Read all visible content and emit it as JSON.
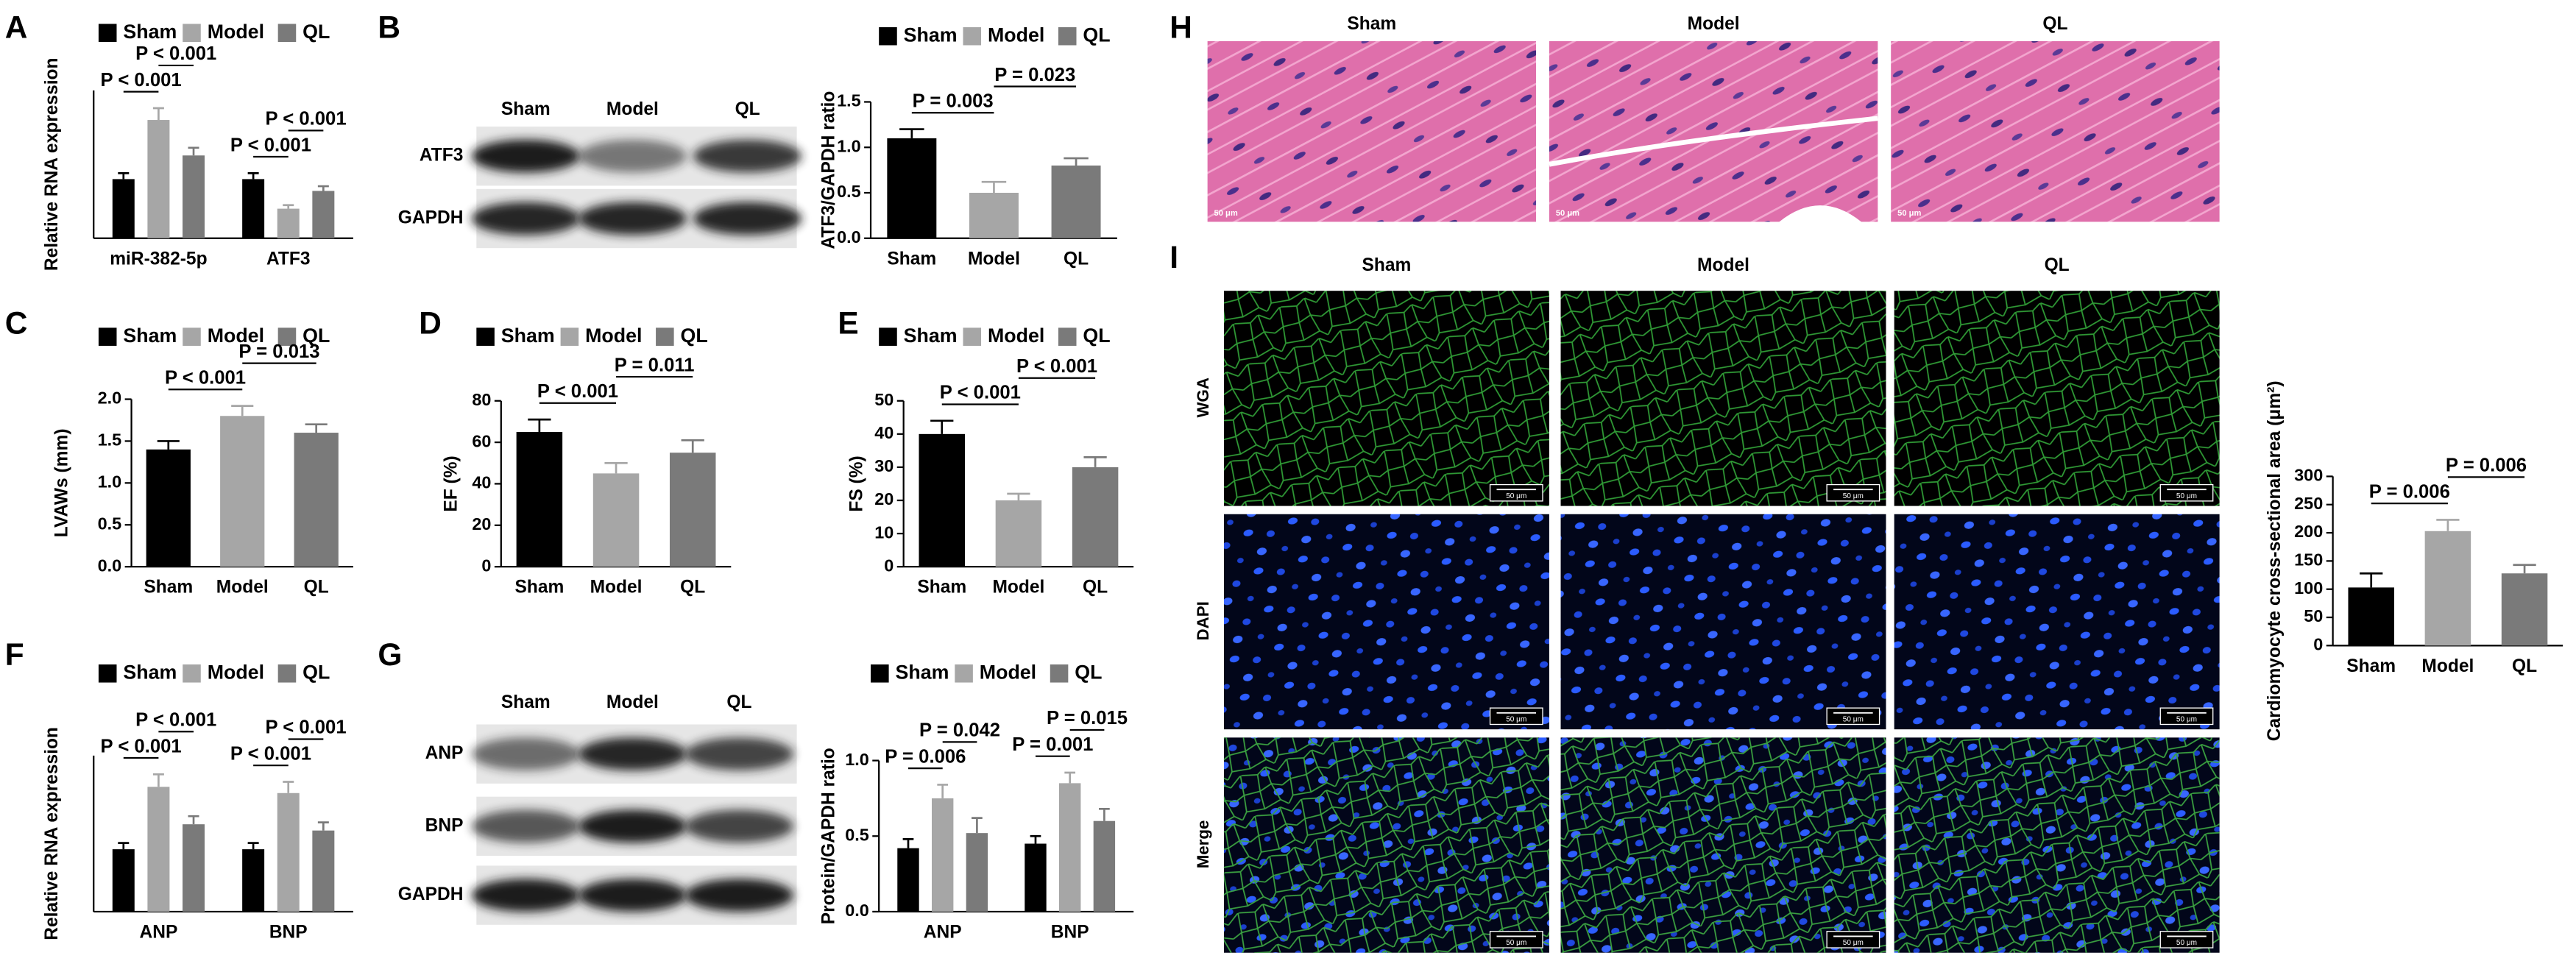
{
  "panel_letters": [
    "A",
    "B",
    "C",
    "D",
    "E",
    "F",
    "G",
    "H",
    "I"
  ],
  "chart_data": [
    {
      "type": "grouped_bar",
      "ylabel": "Relative RNA expression",
      "categories": [
        "miR-382-5p",
        "ATF3"
      ],
      "series": [
        {
          "name": "Sham",
          "color": "#000000",
          "values": [
            1.0,
            1.0
          ],
          "errors": [
            0.1,
            0.1
          ]
        },
        {
          "name": "Model",
          "color": "#a6a6a6",
          "values": [
            2.0,
            0.5
          ],
          "errors": [
            0.2,
            0.06
          ]
        },
        {
          "name": "QL",
          "color": "#7a7a7a",
          "values": [
            1.4,
            0.8
          ],
          "errors": [
            0.13,
            0.08
          ]
        }
      ],
      "ylim": [
        0,
        2.5
      ],
      "annotations": [
        {
          "text": "P < 0.001",
          "pair": [
            0,
            1
          ]
        },
        {
          "text": "P < 0.001",
          "pair": [
            1,
            2
          ]
        },
        {
          "text": "P < 0.001",
          "pair": [
            3,
            4
          ]
        },
        {
          "text": "P < 0.001",
          "pair": [
            4,
            5
          ]
        }
      ]
    },
    {
      "type": "bar",
      "ylabel": "ATF3/GAPDH ratio",
      "legend": [
        "Sham",
        "Model",
        "QL"
      ],
      "categories": [
        "Sham",
        "Model",
        "QL"
      ],
      "values": [
        1.1,
        0.5,
        0.8
      ],
      "errors": [
        0.1,
        0.12,
        0.08
      ],
      "colors": [
        "#000000",
        "#a6a6a6",
        "#7a7a7a"
      ],
      "ylim": [
        0,
        1.5
      ],
      "yticks": [
        {
          "value": 0,
          "label": "0.0"
        },
        0.5,
        {
          "value": 1,
          "label": "1.0"
        },
        1.5
      ],
      "annotations": [
        {
          "text": "P = 0.003",
          "pair": [
            0,
            1
          ]
        },
        {
          "text": "P = 0.023",
          "pair": [
            1,
            2
          ]
        }
      ]
    },
    {
      "type": "bar",
      "ylabel": "LVAWs (mm)",
      "legend": [
        "Sham",
        "Model",
        "QL"
      ],
      "categories": [
        "Sham",
        "Model",
        "QL"
      ],
      "values": [
        1.4,
        1.8,
        1.6
      ],
      "errors": [
        0.1,
        0.12,
        0.1
      ],
      "colors": [
        "#000000",
        "#a6a6a6",
        "#7a7a7a"
      ],
      "ylim": [
        0,
        2.0
      ],
      "yticks": [
        {
          "value": 0,
          "label": "0.0"
        },
        0.5,
        {
          "value": 1,
          "label": "1.0"
        },
        1.5,
        {
          "value": 2,
          "label": "2.0"
        }
      ],
      "annotations": [
        {
          "text": "P < 0.001",
          "pair": [
            0,
            1
          ]
        },
        {
          "text": "P = 0.013",
          "pair": [
            1,
            2
          ]
        }
      ]
    },
    {
      "type": "bar",
      "ylabel": "EF (%)",
      "legend": [
        "Sham",
        "Model",
        "QL"
      ],
      "categories": [
        "Sham",
        "Model",
        "QL"
      ],
      "values": [
        65,
        45,
        55
      ],
      "errors": [
        6,
        5,
        6
      ],
      "colors": [
        "#000000",
        "#a6a6a6",
        "#7a7a7a"
      ],
      "ylim": [
        0,
        80
      ],
      "yticks": [
        0,
        20,
        40,
        60,
        80
      ],
      "annotations": [
        {
          "text": "P < 0.001",
          "pair": [
            0,
            1
          ]
        },
        {
          "text": "P = 0.011",
          "pair": [
            1,
            2
          ]
        }
      ]
    },
    {
      "type": "bar",
      "ylabel": "FS (%)",
      "legend": [
        "Sham",
        "Model",
        "QL"
      ],
      "categories": [
        "Sham",
        "Model",
        "QL"
      ],
      "values": [
        40,
        20,
        30
      ],
      "errors": [
        4,
        2,
        3
      ],
      "colors": [
        "#000000",
        "#a6a6a6",
        "#7a7a7a"
      ],
      "ylim": [
        0,
        50
      ],
      "yticks": [
        0,
        10,
        20,
        30,
        40,
        50
      ],
      "annotations": [
        {
          "text": "P < 0.001",
          "pair": [
            0,
            1
          ]
        },
        {
          "text": "P < 0.001",
          "pair": [
            1,
            2
          ]
        }
      ]
    },
    {
      "type": "grouped_bar",
      "ylabel": "Relative RNA expression",
      "categories": [
        "ANP",
        "BNP"
      ],
      "series": [
        {
          "name": "Sham",
          "color": "#000000",
          "values": [
            1.0,
            1.0
          ],
          "errors": [
            0.1,
            0.1
          ]
        },
        {
          "name": "Model",
          "color": "#a6a6a6",
          "values": [
            2.0,
            1.9
          ],
          "errors": [
            0.2,
            0.18
          ]
        },
        {
          "name": "QL",
          "color": "#7a7a7a",
          "values": [
            1.4,
            1.3
          ],
          "errors": [
            0.13,
            0.13
          ]
        }
      ],
      "ylim": [
        0,
        2.5
      ],
      "annotations": [
        {
          "text": "P < 0.001",
          "pair": [
            0,
            1
          ]
        },
        {
          "text": "P < 0.001",
          "pair": [
            1,
            2
          ]
        },
        {
          "text": "P < 0.001",
          "pair": [
            3,
            4
          ]
        },
        {
          "text": "P < 0.001",
          "pair": [
            4,
            5
          ]
        }
      ]
    },
    {
      "type": "grouped_bar",
      "ylabel": "Protein/GAPDH ratio",
      "categories": [
        "ANP",
        "BNP"
      ],
      "series": [
        {
          "name": "Sham",
          "color": "#000000",
          "values": [
            0.42,
            0.45
          ],
          "errors": [
            0.06,
            0.05
          ]
        },
        {
          "name": "Model",
          "color": "#a6a6a6",
          "values": [
            0.75,
            0.85
          ],
          "errors": [
            0.09,
            0.07
          ]
        },
        {
          "name": "QL",
          "color": "#7a7a7a",
          "values": [
            0.52,
            0.6
          ],
          "errors": [
            0.1,
            0.08
          ]
        }
      ],
      "ylim": [
        0,
        1.0
      ],
      "yticks": [
        {
          "value": 0,
          "label": "0.0"
        },
        0.5,
        {
          "value": 1,
          "label": "1.0"
        }
      ],
      "annotations": [
        {
          "text": "P = 0.006",
          "pair": [
            0,
            1
          ]
        },
        {
          "text": "P = 0.042",
          "pair": [
            1,
            2
          ]
        },
        {
          "text": "P = 0.001",
          "pair": [
            3,
            4
          ]
        },
        {
          "text": "P = 0.015",
          "pair": [
            4,
            5
          ]
        }
      ]
    },
    {
      "type": "bar",
      "ylabel": "Cardiomyocyte cross-sectional area (μm²)",
      "categories": [
        "Sham",
        "Model",
        "QL"
      ],
      "values": [
        103,
        203,
        128
      ],
      "errors": [
        25,
        20,
        15
      ],
      "colors": [
        "#000000",
        "#a6a6a6",
        "#7a7a7a"
      ],
      "ylim": [
        0,
        300
      ],
      "yticks": [
        0,
        50,
        100,
        150,
        200,
        250,
        300
      ],
      "annotations": [
        {
          "text": "P = 0.006",
          "pair": [
            0,
            1
          ]
        },
        {
          "text": "P = 0.006",
          "pair": [
            1,
            2
          ]
        }
      ]
    }
  ],
  "blots": [
    {
      "columns": [
        "Sham",
        "Model",
        "QL"
      ],
      "rows": [
        "ATF3",
        "GAPDH"
      ]
    },
    {
      "columns": [
        "Sham",
        "Model",
        "QL"
      ],
      "rows": [
        "ANP",
        "BNP",
        "GAPDH"
      ]
    }
  ],
  "histology": {
    "columns": [
      "Sham",
      "Model",
      "QL"
    ],
    "scale_bar": "50 μm"
  },
  "fluorescence": {
    "columns": [
      "Sham",
      "Model",
      "QL"
    ],
    "rows": [
      "WGA",
      "DAPI",
      "Merge"
    ],
    "scale_bar": "50 μm"
  }
}
